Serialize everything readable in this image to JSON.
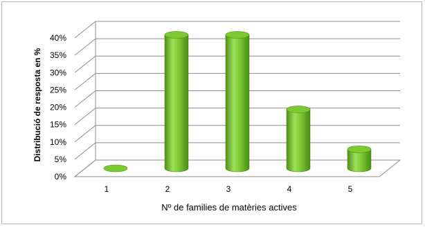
{
  "chart_data": {
    "type": "bar",
    "style": "3d-cylinder",
    "title": "",
    "categories": [
      "1",
      "2",
      "3",
      "4",
      "5"
    ],
    "values": [
      0,
      38.5,
      38.5,
      17,
      5.5
    ],
    "value_unit": "%",
    "xlabel": "Nº de families de matèries actives",
    "ylabel": "Distribució de resposta en %",
    "ylim": [
      0,
      40
    ],
    "yticks": [
      "0%",
      "5%",
      "10%",
      "15%",
      "20%",
      "25%",
      "30%",
      "35%",
      "40%"
    ],
    "grid": true,
    "legend": "none",
    "colors": {
      "bar_fill": "#7dc932",
      "bar_light": "#b9ef74",
      "bar_dark": "#4f8f17",
      "grid": "#8c8c8c"
    }
  }
}
